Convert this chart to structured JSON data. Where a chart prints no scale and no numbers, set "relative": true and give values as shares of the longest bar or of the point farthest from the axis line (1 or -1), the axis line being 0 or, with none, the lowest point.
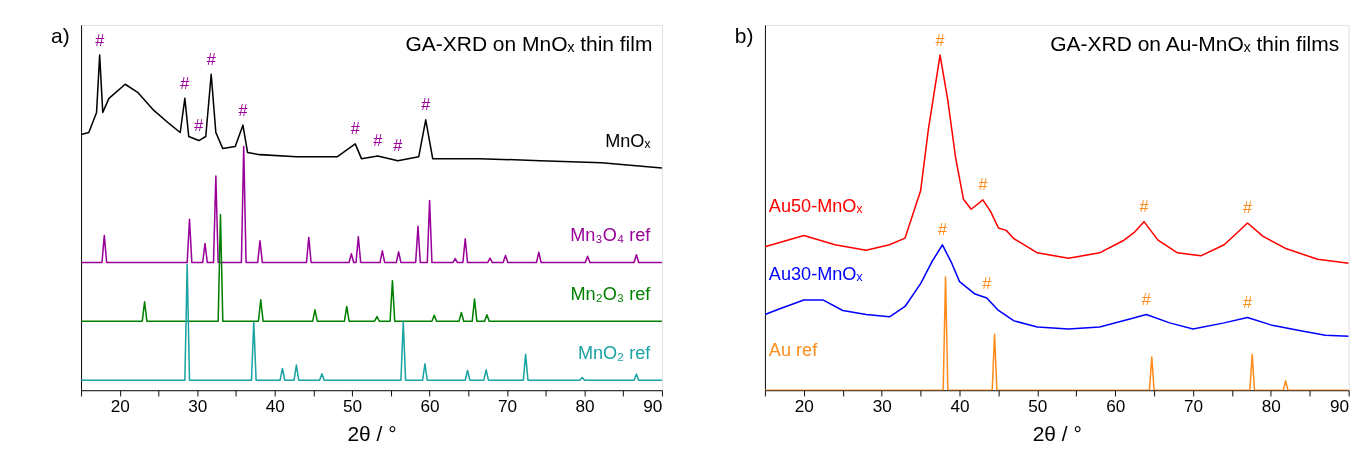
{
  "chart_data": [
    {
      "type": "line",
      "relative": true,
      "title": "GA-XRD on MnOₓ thin film",
      "xlabel": "2θ / °",
      "xlim": [
        15,
        90
      ],
      "xticks": [
        {
          "value": 15,
          "label": null
        },
        20,
        {
          "value": 25,
          "label": null
        },
        30,
        {
          "value": 35,
          "label": null
        },
        40,
        {
          "value": 45,
          "label": null
        },
        50,
        {
          "value": 55,
          "label": null
        },
        60,
        {
          "value": 65,
          "label": null
        },
        70,
        {
          "value": 75,
          "label": null
        },
        80,
        {
          "value": 85,
          "label": null
        },
        90
      ],
      "legend": false,
      "grid": false,
      "tick_labels": "x",
      "line_style": "solid",
      "series": [
        {
          "name": "MnOₓ",
          "color": "#000000",
          "x": [
            15,
            16,
            17,
            17.4,
            17.8,
            18.6,
            20.7,
            22.3,
            24.4,
            26.5,
            27.8,
            28.4,
            28.9,
            30.2,
            31.1,
            31.8,
            32.4,
            33.3,
            34.9,
            35.9,
            36.5,
            38.1,
            42.8,
            48.1,
            50.4,
            51.2,
            53.3,
            55.9,
            58.6,
            59.5,
            60.4,
            66.4,
            74.3,
            82.2,
            90
          ],
          "values": [
            0.763,
            0.769,
            0.829,
            1.0,
            0.829,
            0.871,
            0.913,
            0.889,
            0.835,
            0.793,
            0.769,
            0.871,
            0.757,
            0.745,
            0.757,
            0.943,
            0.769,
            0.721,
            0.727,
            0.791,
            0.709,
            0.703,
            0.697,
            0.697,
            0.735,
            0.691,
            0.699,
            0.685,
            0.697,
            0.807,
            0.691,
            0.691,
            0.685,
            0.679,
            0.663
          ]
        },
        {
          "name": "Mn₃O₄ ref",
          "color": "#990099",
          "x": [
            15,
            17.7,
            18.0,
            18.3,
            28.7,
            29.0,
            29.3,
            30.7,
            31.0,
            31.3,
            32.1,
            32.4,
            32.7,
            35.7,
            36.0,
            36.3,
            37.8,
            38.1,
            38.4,
            44.1,
            44.4,
            44.7,
            49.6,
            49.9,
            50.2,
            50.5,
            50.8,
            51.1,
            53.6,
            53.9,
            54.2,
            55.7,
            56.0,
            56.3,
            58.2,
            58.5,
            58.8,
            59.7,
            60.0,
            60.3,
            63.0,
            63.3,
            63.6,
            64.3,
            64.6,
            64.9,
            67.5,
            67.8,
            68.1,
            69.5,
            69.8,
            70.1,
            73.8,
            74.1,
            74.4,
            80.1,
            80.4,
            80.7,
            86.4,
            86.7,
            87.0,
            90
          ],
          "values": [
            0.381,
            0.381,
            0.462,
            0.381,
            0.381,
            0.51,
            0.381,
            0.381,
            0.438,
            0.381,
            0.381,
            0.639,
            0.381,
            0.381,
            0.727,
            0.381,
            0.381,
            0.446,
            0.381,
            0.381,
            0.456,
            0.381,
            0.381,
            0.407,
            0.381,
            0.381,
            0.458,
            0.381,
            0.381,
            0.416,
            0.381,
            0.381,
            0.413,
            0.381,
            0.381,
            0.489,
            0.381,
            0.381,
            0.566,
            0.381,
            0.381,
            0.393,
            0.381,
            0.381,
            0.452,
            0.381,
            0.381,
            0.394,
            0.381,
            0.381,
            0.402,
            0.381,
            0.381,
            0.412,
            0.381,
            0.381,
            0.4,
            0.381,
            0.381,
            0.404,
            0.381,
            0.381
          ]
        },
        {
          "name": "Mn₂O₃ ref",
          "color": "#008000",
          "x": [
            15,
            22.9,
            23.2,
            23.5,
            32.7,
            33.0,
            33.3,
            37.9,
            38.2,
            38.5,
            44.9,
            45.2,
            45.5,
            49.0,
            49.3,
            49.6,
            52.9,
            53.2,
            53.5,
            54.9,
            55.2,
            55.5,
            60.3,
            60.6,
            60.9,
            63.8,
            64.1,
            64.4,
            65.5,
            65.8,
            66.1,
            67.1,
            67.4,
            67.7,
            90
          ],
          "values": [
            0.206,
            0.206,
            0.264,
            0.206,
            0.206,
            0.524,
            0.206,
            0.206,
            0.27,
            0.206,
            0.206,
            0.24,
            0.206,
            0.206,
            0.25,
            0.206,
            0.206,
            0.22,
            0.206,
            0.206,
            0.327,
            0.206,
            0.206,
            0.224,
            0.206,
            0.206,
            0.232,
            0.206,
            0.206,
            0.272,
            0.206,
            0.206,
            0.225,
            0.206,
            0.206
          ]
        },
        {
          "name": "MnO₂ ref",
          "color": "#1aa3a3",
          "x": [
            15,
            28.4,
            28.7,
            29.0,
            37.0,
            37.3,
            37.6,
            40.7,
            41.0,
            41.3,
            42.5,
            42.8,
            43.1,
            45.8,
            46.1,
            46.4,
            56.3,
            56.6,
            56.9,
            59.1,
            59.4,
            59.7,
            64.6,
            64.9,
            65.2,
            67.0,
            67.3,
            67.6,
            72.1,
            72.4,
            72.7,
            79.4,
            79.7,
            80.0,
            86.4,
            86.7,
            87.0,
            90
          ],
          "values": [
            0.03,
            0.03,
            0.376,
            0.03,
            0.03,
            0.203,
            0.03,
            0.03,
            0.065,
            0.03,
            0.03,
            0.075,
            0.03,
            0.03,
            0.049,
            0.03,
            0.03,
            0.206,
            0.03,
            0.03,
            0.079,
            0.03,
            0.03,
            0.059,
            0.03,
            0.03,
            0.061,
            0.03,
            0.03,
            0.107,
            0.03,
            0.03,
            0.038,
            0.03,
            0.03,
            0.048,
            0.03,
            0.03
          ]
        }
      ],
      "annotations": [
        "a)",
        {
          "text": "#",
          "x": 17.4,
          "y": 1.0
        },
        {
          "text": "#",
          "x": 28.4,
          "y": 0.871
        },
        {
          "text": "#",
          "x": 30.2,
          "y": 0.745
        },
        {
          "text": "#",
          "x": 31.8,
          "y": 0.943
        },
        {
          "text": "#",
          "x": 35.9,
          "y": 0.791
        },
        {
          "text": "#",
          "x": 50.4,
          "y": 0.735
        },
        {
          "text": "#",
          "x": 53.3,
          "y": 0.699
        },
        {
          "text": "#",
          "x": 55.9,
          "y": 0.685
        },
        {
          "text": "#",
          "x": 59.5,
          "y": 0.807
        }
      ]
    },
    {
      "type": "line",
      "relative": true,
      "title": "GA-XRD on Au-MnOₓ thin films",
      "xlabel": "2θ / °",
      "xlim": [
        15,
        90
      ],
      "xticks": [
        {
          "value": 15,
          "label": null
        },
        20,
        {
          "value": 25,
          "label": null
        },
        30,
        {
          "value": 35,
          "label": null
        },
        40,
        {
          "value": 45,
          "label": null
        },
        50,
        {
          "value": 55,
          "label": null
        },
        60,
        {
          "value": 65,
          "label": null
        },
        70,
        {
          "value": 75,
          "label": null
        },
        80,
        {
          "value": 85,
          "label": null
        },
        90
      ],
      "legend": false,
      "grid": false,
      "tick_labels": "x",
      "line_style": "solid",
      "series": [
        {
          "name": "Au50-MnOₓ",
          "color": "#ff0000",
          "x": [
            15,
            20,
            24,
            28,
            31,
            33,
            35,
            36,
            37.5,
            38.5,
            39.5,
            40.5,
            41.5,
            43,
            44,
            45,
            46,
            47,
            50,
            54,
            58,
            61,
            62.5,
            63.7,
            65.5,
            68,
            71,
            74,
            75.5,
            77,
            79,
            82,
            86,
            90
          ],
          "values": [
            0.428,
            0.462,
            0.434,
            0.418,
            0.434,
            0.454,
            0.595,
            0.779,
            1.0,
            0.864,
            0.693,
            0.57,
            0.54,
            0.568,
            0.533,
            0.484,
            0.477,
            0.452,
            0.41,
            0.394,
            0.41,
            0.446,
            0.472,
            0.503,
            0.448,
            0.41,
            0.401,
            0.434,
            0.466,
            0.499,
            0.459,
            0.422,
            0.391,
            0.379
          ]
        },
        {
          "name": "Au30-MnOₓ",
          "color": "#0000ff",
          "x": [
            15,
            17,
            20,
            22.5,
            25,
            28,
            31,
            33,
            35,
            36.5,
            37.8,
            39,
            40,
            42,
            43.5,
            45,
            47,
            50,
            54,
            58,
            62,
            64,
            67,
            70,
            74,
            77,
            80,
            84,
            87,
            90
          ],
          "values": [
            0.226,
            0.244,
            0.269,
            0.269,
            0.238,
            0.226,
            0.219,
            0.25,
            0.318,
            0.385,
            0.434,
            0.379,
            0.324,
            0.287,
            0.275,
            0.238,
            0.207,
            0.189,
            0.183,
            0.189,
            0.213,
            0.226,
            0.201,
            0.183,
            0.201,
            0.217,
            0.195,
            0.177,
            0.164,
            0.161
          ]
        },
        {
          "name": "Au ref",
          "color": "#ff8c1a",
          "x": [
            15,
            37.9,
            38.2,
            38.5,
            44.2,
            44.5,
            44.8,
            64.4,
            64.7,
            65.0,
            77.3,
            77.6,
            77.9,
            81.6,
            81.9,
            82.2,
            90
          ],
          "values": [
            0,
            0,
            0.338,
            0,
            0,
            0.167,
            0,
            0,
            0.099,
            0,
            0,
            0.107,
            0,
            0,
            0.028,
            0,
            0
          ]
        }
      ],
      "annotations": [
        "b)",
        {
          "text": "#",
          "x": 37.5,
          "y": 1.0
        },
        {
          "text": "#",
          "x": 43,
          "y": 0.568
        },
        {
          "text": "#",
          "x": 63.7,
          "y": 0.503
        },
        {
          "text": "#",
          "x": 77,
          "y": 0.499
        },
        {
          "text": "#",
          "x": 37.8,
          "y": 0.434
        },
        {
          "text": "#",
          "x": 43.5,
          "y": 0.275
        },
        {
          "text": "#",
          "x": 64,
          "y": 0.226
        },
        {
          "text": "#",
          "x": 77,
          "y": 0.217
        }
      ]
    }
  ]
}
